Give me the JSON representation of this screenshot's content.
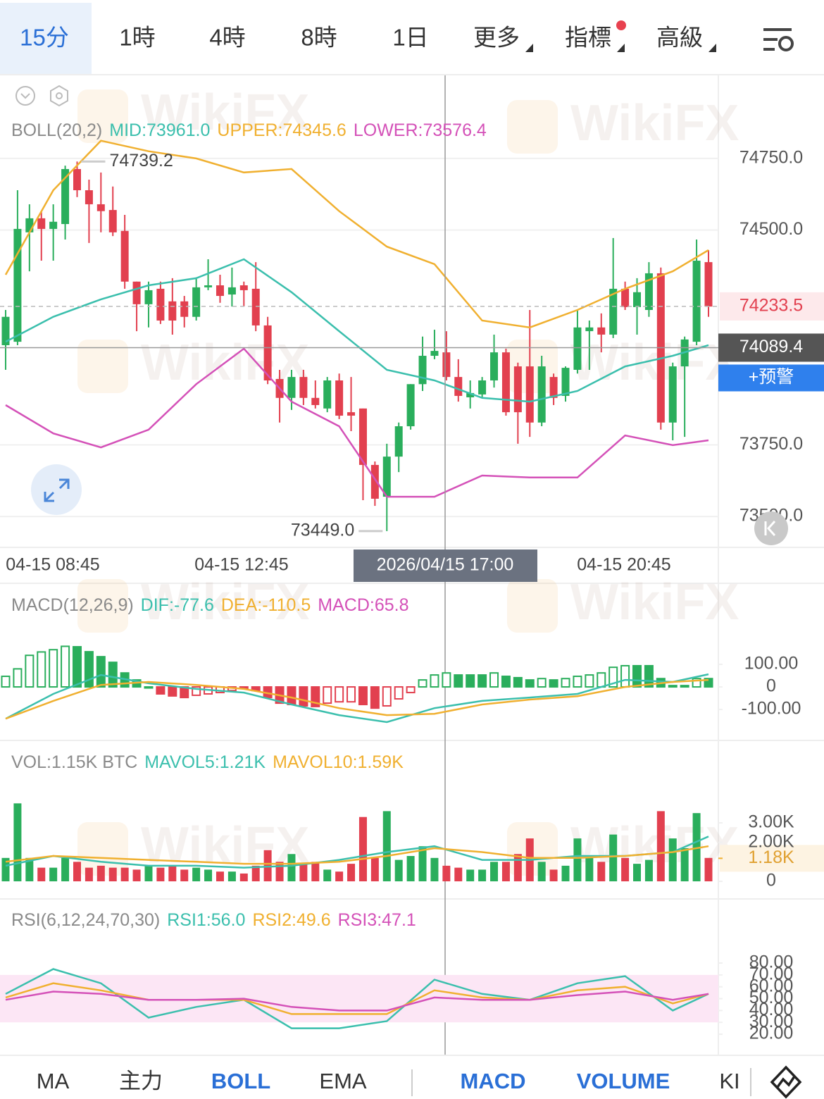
{
  "tabs": [
    "15分",
    "1時",
    "4時",
    "8時",
    "1日",
    "更多",
    "指標",
    "高級"
  ],
  "watermark": "WikiFX",
  "indicator_tabs": [
    "MA",
    "主力",
    "BOLL",
    "EMA",
    "MACD",
    "VOLUME",
    "KI"
  ],
  "chart_data": [
    {
      "type": "candlestick",
      "title": "BOLL(20,2)",
      "up_color": "#2aae5c",
      "down_color": "#e2404f",
      "candles": [
        [
          74098,
          74221,
          74012,
          74197
        ],
        [
          74110,
          74639,
          74098,
          74504
        ],
        [
          74492,
          74590,
          74356,
          74541
        ],
        [
          74541,
          74566,
          74393,
          74504
        ],
        [
          74504,
          74590,
          74393,
          74529
        ],
        [
          74521,
          74725,
          74467,
          74713
        ],
        [
          74713,
          74739.2,
          74615,
          74639
        ],
        [
          74639,
          74676,
          74455,
          74590
        ],
        [
          74590,
          74701,
          74492,
          74566
        ],
        [
          74570,
          74652,
          74479,
          74492
        ],
        [
          74497,
          74553,
          74295,
          74320
        ],
        [
          74320,
          74320,
          74147,
          74241
        ],
        [
          74241,
          74320,
          74160,
          74290
        ],
        [
          74295,
          74320,
          74172,
          74184
        ],
        [
          74251,
          74332,
          74135,
          74184
        ],
        [
          74251,
          74270,
          74160,
          74197
        ],
        [
          74197,
          74332,
          74184,
          74300
        ],
        [
          74300,
          74398,
          74290,
          74307
        ],
        [
          74307,
          74344,
          74246,
          74270
        ],
        [
          74275,
          74369,
          74233,
          74300
        ],
        [
          74307,
          74320,
          74233,
          74290
        ],
        [
          74295,
          74388,
          74147,
          74167
        ],
        [
          74167,
          74197,
          73962,
          73975
        ],
        [
          73980,
          74012,
          73828,
          73914
        ],
        [
          73914,
          74012,
          73872,
          73987
        ],
        [
          73987,
          74012,
          73889,
          73914
        ],
        [
          73914,
          73975,
          73877,
          73889
        ],
        [
          73877,
          73987,
          73864,
          73975
        ],
        [
          73975,
          73999,
          73840,
          73852
        ],
        [
          73864,
          73987,
          73798,
          73852
        ],
        [
          73877,
          73877,
          73557,
          73680
        ],
        [
          73680,
          73692,
          73537,
          73562
        ],
        [
          73569,
          73754,
          73449,
          73709
        ],
        [
          73709,
          73828,
          73655,
          73815
        ],
        [
          73815,
          73962,
          73803,
          73962
        ],
        [
          73962,
          74128,
          73938,
          74061
        ],
        [
          74061,
          74152,
          74049,
          74078
        ],
        [
          74073,
          74147,
          73975,
          73987
        ],
        [
          73987,
          74049,
          73901,
          73921
        ],
        [
          73916,
          73975,
          73877,
          73931
        ],
        [
          73926,
          73987,
          73914,
          73975
        ],
        [
          73975,
          74135,
          73950,
          74073
        ],
        [
          74073,
          74086,
          73852,
          73864
        ],
        [
          74024,
          74037,
          73754,
          73864
        ],
        [
          74024,
          74221,
          73778,
          73828
        ],
        [
          73828,
          74061,
          73815,
          74024
        ],
        [
          73987,
          73999,
          73889,
          73914
        ],
        [
          73921,
          74024,
          73901,
          74019
        ],
        [
          74012,
          74221,
          73999,
          74160
        ],
        [
          74147,
          74184,
          74012,
          74160
        ],
        [
          74160,
          74209,
          74073,
          74135
        ],
        [
          74135,
          74472,
          74123,
          74295
        ],
        [
          74295,
          74320,
          74221,
          74231
        ],
        [
          74231,
          74332,
          74135,
          74283
        ],
        [
          74221,
          74388,
          74197,
          74349
        ],
        [
          74349,
          74369,
          73803,
          73828
        ],
        [
          73828,
          74037,
          73766,
          74024
        ],
        [
          74024,
          74128,
          73778,
          74118
        ],
        [
          74110,
          74467,
          74098,
          74393
        ],
        [
          74388,
          74430,
          74197,
          74233
        ]
      ],
      "series": [
        {
          "name": "MID:73961.0",
          "color": "#3bbfad",
          "x": [
            0,
            4,
            8,
            12,
            16,
            20,
            24,
            28,
            32,
            36,
            40,
            44,
            48,
            52,
            56,
            59
          ],
          "values": [
            74110,
            74197,
            74258,
            74307,
            74332,
            74398,
            74283,
            74147,
            74012,
            73975,
            73914,
            73901,
            73938,
            74024,
            74061,
            74098
          ]
        },
        {
          "name": "UPPER:74345.6",
          "color": "#f0b030",
          "x": [
            0,
            4,
            8,
            12,
            16,
            20,
            24,
            28,
            32,
            36,
            40,
            44,
            48,
            52,
            56,
            59
          ],
          "values": [
            74344,
            74639,
            74812,
            74775,
            74750,
            74701,
            74713,
            74566,
            74442,
            74381,
            74184,
            74160,
            74221,
            74295,
            74356,
            74430
          ]
        },
        {
          "name": "LOWER:73576.4",
          "color": "#d451b8",
          "x": [
            0,
            4,
            8,
            12,
            16,
            20,
            24,
            28,
            32,
            36,
            40,
            44,
            48,
            52,
            56,
            59
          ],
          "values": [
            73889,
            73790,
            73741,
            73803,
            73962,
            74086,
            73901,
            73815,
            73569,
            73569,
            73643,
            73636,
            73636,
            73783,
            73749,
            73766
          ]
        }
      ],
      "ylim": [
        73397,
        75040
      ],
      "yticks": [
        {
          "value": 74750,
          "label": "74750.0"
        },
        {
          "value": 74500,
          "label": "74500.0"
        },
        {
          "value": 73750,
          "label": "73750.0"
        },
        {
          "value": 73500,
          "label": "73500.0"
        }
      ],
      "grid": true,
      "x_labels": [
        "04-15 08:45",
        "04-15 12:45",
        "04-15 20:45"
      ],
      "high_label": 74739.2,
      "low_label": {
        "value": 73449,
        "label": "73449.0"
      },
      "last_price": 74233.5,
      "crosshair": {
        "price": 74089.4,
        "time": "2026/04/15 17:00",
        "alert": "+预警"
      }
    },
    {
      "type": "macd",
      "title": "MACD(12,26,9)",
      "up_color": "#2aae5c",
      "down_color": "#e2404f",
      "histogram_name": "MACD:65.8",
      "histogram_color": "#d451b8",
      "histogram": [
        47,
        80,
        140,
        155,
        165,
        180,
        178,
        156,
        134,
        109,
        62,
        31,
        0,
        -31,
        -40,
        -47,
        -37,
        -31,
        -25,
        -16,
        -6,
        -16,
        -47,
        -72,
        -78,
        -84,
        -87,
        -72,
        -66,
        -66,
        -78,
        -94,
        -84,
        -53,
        -25,
        31,
        53,
        62,
        53,
        53,
        53,
        62,
        47,
        41,
        31,
        37,
        31,
        37,
        47,
        53,
        62,
        87,
        94,
        94,
        94,
        37,
        6,
        6,
        37,
        37
      ],
      "series": [
        {
          "name": "DIF:-77.6",
          "color": "#3bbfad",
          "x": [
            0,
            4,
            8,
            12,
            16,
            20,
            24,
            28,
            32,
            36,
            40,
            44,
            48,
            52,
            56,
            59
          ],
          "values": [
            -141,
            -31,
            53,
            16,
            -9,
            -25,
            -78,
            -125,
            -156,
            -94,
            -62,
            -47,
            -31,
            31,
            22,
            56
          ]
        },
        {
          "name": "DEA:-110.5",
          "color": "#f0b030",
          "x": [
            0,
            4,
            8,
            12,
            16,
            20,
            24,
            28,
            32,
            36,
            40,
            44,
            48,
            52,
            56,
            59
          ],
          "values": [
            -141,
            -62,
            9,
            22,
            9,
            -9,
            -47,
            -94,
            -125,
            -119,
            -78,
            -56,
            -41,
            0,
            22,
            31
          ]
        }
      ],
      "ylim": [
        -234,
        453
      ],
      "yticks": [
        {
          "value": 100,
          "label": "100.00"
        },
        0,
        {
          "value": -100,
          "label": "-100.00"
        }
      ]
    },
    {
      "type": "volume",
      "title": "VOL:1.15K BTC",
      "up_color": "#2aae5c",
      "down_color": "#e2404f",
      "values": [
        1200,
        4000,
        1200,
        700,
        700,
        1200,
        1000,
        700,
        800,
        700,
        700,
        600,
        800,
        700,
        800,
        600,
        700,
        600,
        500,
        500,
        400,
        800,
        1600,
        1000,
        1400,
        900,
        1000,
        600,
        500,
        900,
        3300,
        1200,
        3600,
        1100,
        1300,
        1800,
        1200,
        800,
        700,
        600,
        600,
        1000,
        1000,
        1400,
        2200,
        1000,
        600,
        800,
        2200,
        1200,
        1000,
        2400,
        1200,
        900,
        1100,
        3600,
        2200,
        1700,
        3500,
        1200
      ],
      "series": [
        {
          "name": "MAVOL5:1.21K",
          "color": "#3bbfad",
          "x": [
            0,
            4,
            8,
            12,
            16,
            20,
            24,
            28,
            32,
            36,
            40,
            44,
            48,
            52,
            56,
            59
          ],
          "values": [
            800,
            1300,
            1000,
            800,
            800,
            700,
            800,
            1100,
            1500,
            1800,
            1100,
            1100,
            1300,
            1300,
            1500,
            2300
          ]
        },
        {
          "name": "MAVOL10:1.59K",
          "color": "#f0b030",
          "x": [
            0,
            4,
            8,
            12,
            16,
            20,
            24,
            28,
            32,
            36,
            40,
            44,
            48,
            52,
            56,
            59
          ],
          "values": [
            1000,
            1300,
            1200,
            1100,
            1000,
            900,
            900,
            1000,
            1300,
            1700,
            1500,
            1200,
            1200,
            1300,
            1500,
            1800
          ]
        }
      ],
      "ylim": [
        -867,
        7193
      ],
      "yticks": [
        {
          "value": 3000,
          "label": "3.00K"
        },
        {
          "value": 2000,
          "label": "2.00K"
        },
        0
      ],
      "last_value": {
        "value": 1180,
        "label": "1.18K"
      }
    },
    {
      "type": "rsi",
      "title": "RSI(6,12,24,70,30)",
      "band": [
        30,
        70
      ],
      "band_color": "#fce6f5",
      "series": [
        {
          "name": "RSI1:56.0",
          "color": "#3bbfad",
          "x": [
            0,
            4,
            8,
            12,
            16,
            20,
            24,
            28,
            32,
            36,
            40,
            44,
            48,
            52,
            56,
            59
          ],
          "values": [
            54,
            75,
            63,
            34,
            43,
            49,
            25,
            25,
            31,
            66,
            54,
            49,
            63,
            69,
            40,
            54
          ]
        },
        {
          "name": "RSI2:49.6",
          "color": "#f0b030",
          "x": [
            0,
            4,
            8,
            12,
            16,
            20,
            24,
            28,
            32,
            36,
            40,
            44,
            48,
            52,
            56,
            59
          ],
          "values": [
            51,
            63,
            57,
            49,
            49,
            49,
            37,
            37,
            37,
            57,
            51,
            49,
            57,
            60,
            46,
            54
          ]
        },
        {
          "name": "RSI3:47.1",
          "color": "#d451b8",
          "x": [
            0,
            4,
            8,
            12,
            16,
            20,
            24,
            28,
            32,
            36,
            40,
            44,
            48,
            52,
            56,
            59
          ],
          "values": [
            49,
            56,
            54,
            49,
            49,
            50,
            43,
            40,
            40,
            51,
            49,
            49,
            53,
            56,
            49,
            54
          ]
        }
      ],
      "ylim": [
        2.8,
        133.5
      ],
      "yticks": [
        {
          "value": 80,
          "label": "80.00"
        },
        {
          "value": 70,
          "label": "70.00"
        },
        {
          "value": 60,
          "label": "60.00"
        },
        {
          "value": 50,
          "label": "50.00"
        },
        {
          "value": 40,
          "label": "40.00"
        },
        {
          "value": 30,
          "label": "30.00"
        },
        {
          "value": 20,
          "label": "20.00"
        }
      ]
    }
  ]
}
